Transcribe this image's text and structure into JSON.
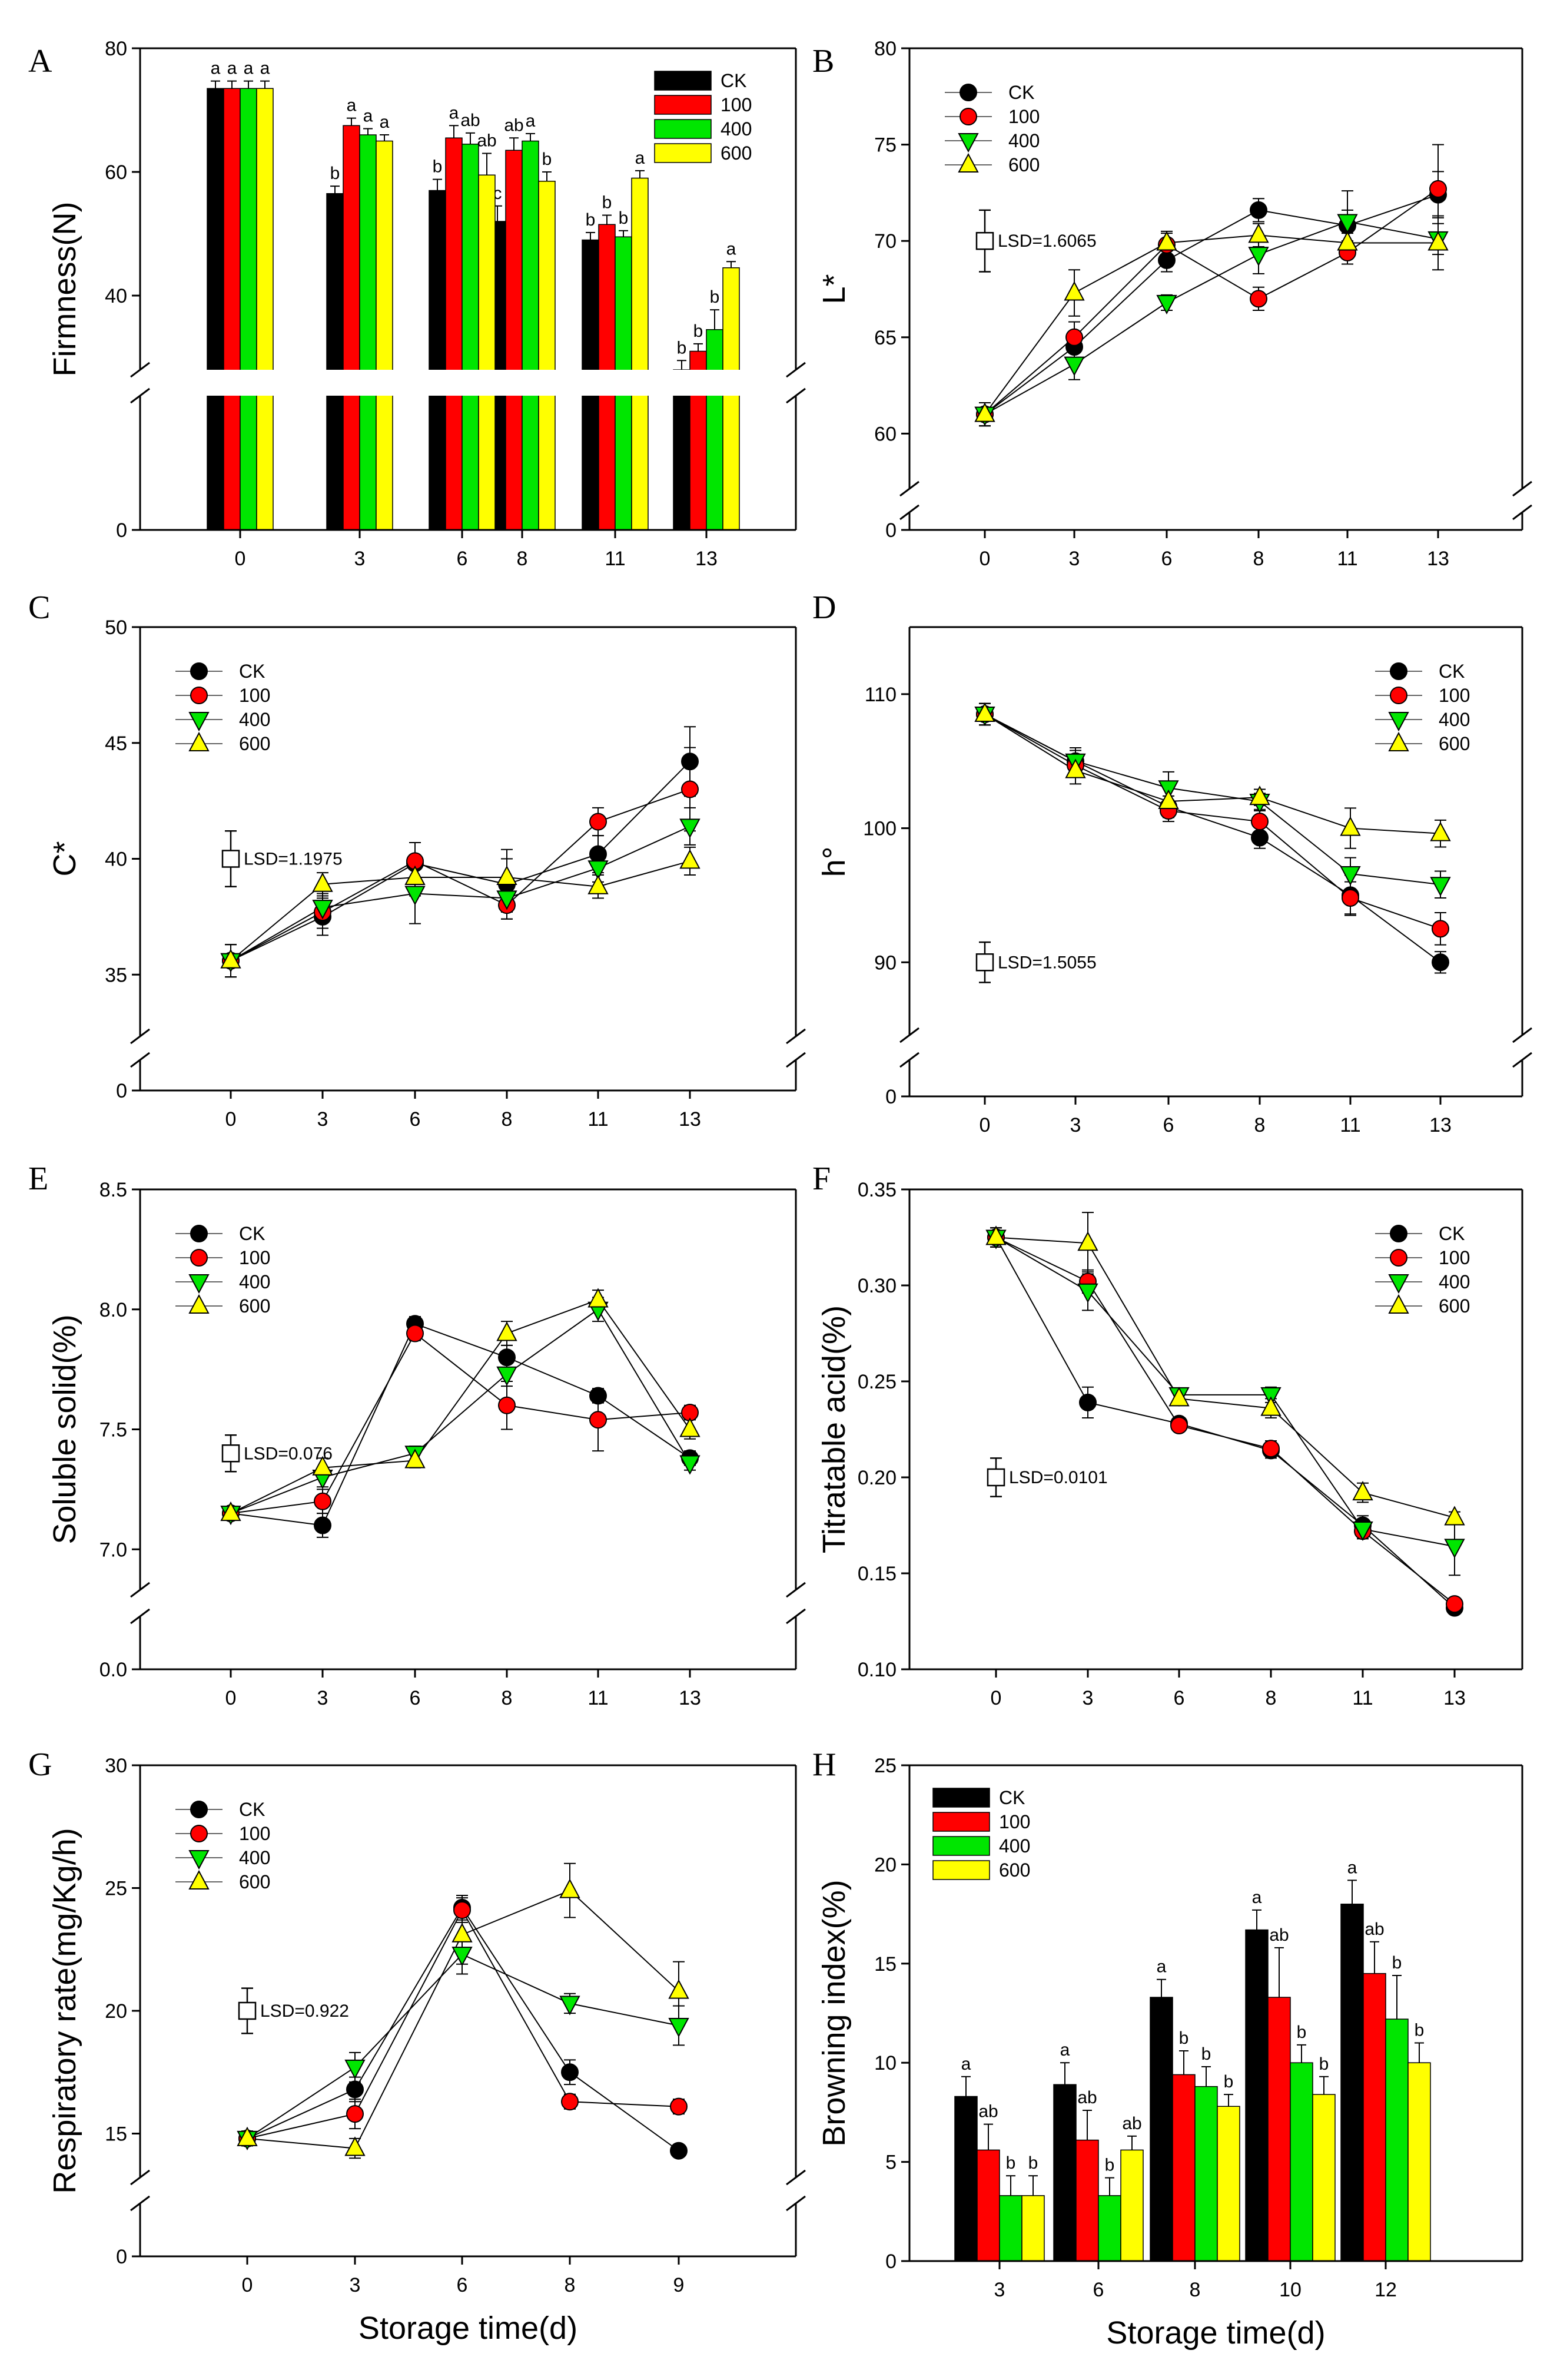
{
  "chart_data": [
    {
      "panel": "A",
      "type": "bar",
      "broken_axis": true,
      "ylabel": "Firmness(N)",
      "xlabel": "",
      "categories": [
        "0",
        "3",
        "6",
        "8",
        "11",
        "13"
      ],
      "ylim": [
        0,
        80
      ],
      "yticks": [
        0,
        40,
        60,
        80
      ],
      "legend": "top-right",
      "series": [
        {
          "name": "CK",
          "color": "#000000",
          "values": [
            73.5,
            56.5,
            57,
            52,
            49,
            28
          ],
          "err": [
            1.2,
            1.2,
            1.8,
            2.5,
            1.2,
            1.5
          ],
          "sig": [
            "a",
            "b",
            "b",
            "c",
            "b",
            "b"
          ]
        },
        {
          "name": "100",
          "color": "#ff0000",
          "values": [
            73.5,
            67.5,
            65.5,
            63.5,
            51.5,
            31
          ],
          "err": [
            1.2,
            1.2,
            2,
            2,
            1.5,
            1.2
          ],
          "sig": [
            "a",
            "a",
            "a",
            "ab",
            "b",
            "b"
          ]
        },
        {
          "name": "400",
          "color": "#00e600",
          "values": [
            73.5,
            66,
            64.5,
            65,
            49.5,
            34.5
          ],
          "err": [
            1.2,
            1,
            1.8,
            1.2,
            1,
            3.2
          ],
          "sig": [
            "a",
            "a",
            "ab",
            "a",
            "b",
            "b"
          ]
        },
        {
          "name": "600",
          "color": "#ffff00",
          "values": [
            73.5,
            65,
            59.5,
            58.5,
            59,
            44.5
          ],
          "err": [
            1.2,
            1,
            3.5,
            1.5,
            1.2,
            1
          ],
          "sig": [
            "a",
            "a",
            "ab",
            "b",
            "a",
            "a"
          ]
        }
      ]
    },
    {
      "panel": "B",
      "type": "line",
      "ylabel": "L*",
      "xlabel": "",
      "categories": [
        "0",
        "3",
        "6",
        "8",
        "11",
        "13"
      ],
      "ylim": [
        55,
        80
      ],
      "yticks": [
        55,
        60,
        65,
        70,
        75,
        80
      ],
      "tick_labels": [
        "0",
        "60",
        "65",
        "70",
        "75",
        "80"
      ],
      "lsd": {
        "label": "LSD=1.6065",
        "center": 70,
        "half": 1.6
      },
      "legend": "top-left",
      "series": [
        {
          "name": "CK",
          "marker": "circle",
          "color": "#000000",
          "values": [
            61,
            64.5,
            69,
            71.6,
            70.8,
            72.4
          ],
          "err": [
            0.6,
            0.8,
            0.6,
            0.6,
            0.8,
            1.2
          ]
        },
        {
          "name": "100",
          "marker": "circle",
          "color": "#ff0000",
          "values": [
            61,
            65,
            69.8,
            67,
            69.4,
            72.7
          ],
          "err": [
            0.6,
            0.8,
            0.6,
            0.6,
            0.6,
            2.3
          ]
        },
        {
          "name": "400",
          "marker": "triangle-down",
          "color": "#00e600",
          "values": [
            61,
            63.6,
            66.8,
            69.3,
            71,
            70.1
          ],
          "err": [
            0.6,
            0.8,
            0.4,
            1,
            1.6,
            0.8
          ]
        },
        {
          "name": "600",
          "marker": "triangle-up",
          "color": "#ffff00",
          "values": [
            61,
            67.3,
            69.9,
            70.3,
            69.9,
            69.9
          ],
          "err": [
            0.6,
            1.2,
            0.6,
            0.6,
            0.5,
            1.4
          ]
        }
      ]
    },
    {
      "panel": "C",
      "type": "line",
      "broken_axis": true,
      "ylabel": "C*",
      "xlabel": "",
      "categories": [
        "0",
        "3",
        "6",
        "8",
        "11",
        "13"
      ],
      "ylim": [
        30,
        50
      ],
      "yticks": [
        30,
        35,
        40,
        45,
        50
      ],
      "tick_labels": [
        "0",
        "35",
        "40",
        "45",
        "50"
      ],
      "lsd": {
        "label": "LSD=1.1975",
        "center": 40,
        "half": 1.2
      },
      "legend": "top-left",
      "series": [
        {
          "name": "CK",
          "marker": "circle",
          "color": "#000000",
          "values": [
            35.6,
            37.5,
            39.8,
            38.9,
            40.2,
            44.2
          ],
          "err": [
            0.7,
            0.8,
            0.9,
            1.5,
            0.8,
            1.5
          ]
        },
        {
          "name": "100",
          "marker": "circle",
          "color": "#ff0000",
          "values": [
            35.6,
            37.7,
            39.9,
            38,
            41.6,
            43
          ],
          "err": [
            0.7,
            0.7,
            0.8,
            0.6,
            0.6,
            1.8
          ]
        },
        {
          "name": "400",
          "marker": "triangle-down",
          "color": "#00e600",
          "values": [
            35.6,
            37.9,
            38.5,
            38.3,
            39.6,
            41.4
          ],
          "err": [
            0.7,
            0.6,
            1.3,
            0.6,
            0.6,
            0.8
          ]
        },
        {
          "name": "600",
          "marker": "triangle-up",
          "color": "#ffff00",
          "values": [
            35.6,
            38.9,
            39.2,
            39.2,
            38.8,
            39.9
          ],
          "err": [
            0.7,
            0.5,
            0.8,
            0.8,
            0.5,
            0.6
          ]
        }
      ]
    },
    {
      "panel": "D",
      "type": "line",
      "broken_axis": true,
      "ylabel": "h°",
      "xlabel": "",
      "categories": [
        "0",
        "3",
        "6",
        "8",
        "11",
        "13"
      ],
      "ylim": [
        80,
        115
      ],
      "yticks": [
        80,
        90,
        100,
        110
      ],
      "tick_labels": [
        "0",
        "90",
        "100",
        "110"
      ],
      "lsd": {
        "label": "LSD=1.5055",
        "center": 90,
        "half": 1.5
      },
      "legend": "top-right",
      "series": [
        {
          "name": "CK",
          "marker": "circle",
          "color": "#000000",
          "values": [
            108.5,
            105,
            101.6,
            99.3,
            95,
            90
          ],
          "err": [
            0.8,
            1,
            0.8,
            0.8,
            1.5,
            0.8
          ]
        },
        {
          "name": "100",
          "marker": "circle",
          "color": "#ff0000",
          "values": [
            108.5,
            104.7,
            101.3,
            100.5,
            94.8,
            92.5
          ],
          "err": [
            0.8,
            0.8,
            0.8,
            0.8,
            1.2,
            1.2
          ]
        },
        {
          "name": "400",
          "marker": "triangle-down",
          "color": "#00e600",
          "values": [
            108.5,
            105,
            103,
            102,
            96.6,
            95.8
          ],
          "err": [
            0.8,
            0.8,
            1.2,
            0.6,
            1.2,
            1
          ]
        },
        {
          "name": "600",
          "marker": "triangle-up",
          "color": "#ffff00",
          "values": [
            108.5,
            104.3,
            102,
            102.3,
            100,
            99.6
          ],
          "err": [
            0.8,
            1,
            1.2,
            0.6,
            1.5,
            1
          ]
        }
      ]
    },
    {
      "panel": "E",
      "type": "line",
      "broken_axis": true,
      "ylabel": "Soluble solid(%)",
      "xlabel": "",
      "categories": [
        "0",
        "3",
        "6",
        "8",
        "11",
        "13"
      ],
      "ylim": [
        6.5,
        8.5
      ],
      "yticks": [
        6.5,
        7.0,
        7.5,
        8.0,
        8.5
      ],
      "tick_labels": [
        "0.0",
        "7.0",
        "7.5",
        "8.0",
        "8.5"
      ],
      "lsd": {
        "label": "LSD=0.076",
        "center": 7.4,
        "half": 0.076
      },
      "legend": "top-left",
      "series": [
        {
          "name": "CK",
          "marker": "circle",
          "color": "#000000",
          "values": [
            7.15,
            7.1,
            7.94,
            7.8,
            7.64,
            7.38
          ],
          "err": [
            0.02,
            0.05,
            0.03,
            0.05,
            0.03,
            0.03
          ]
        },
        {
          "name": "100",
          "marker": "circle",
          "color": "#ff0000",
          "values": [
            7.15,
            7.2,
            7.9,
            7.6,
            7.54,
            7.57
          ],
          "err": [
            0.02,
            0.05,
            0.03,
            0.1,
            0.13,
            0.03
          ]
        },
        {
          "name": "400",
          "marker": "triangle-down",
          "color": "#00e600",
          "values": [
            7.15,
            7.3,
            7.4,
            7.73,
            8.0,
            7.36
          ],
          "err": [
            0.02,
            0.04,
            0.03,
            0.05,
            0.05,
            0.03
          ]
        },
        {
          "name": "600",
          "marker": "triangle-up",
          "color": "#ffff00",
          "values": [
            7.15,
            7.34,
            7.37,
            7.9,
            8.04,
            7.5
          ],
          "err": [
            0.02,
            0.04,
            0.03,
            0.05,
            0.04,
            0.04
          ]
        }
      ]
    },
    {
      "panel": "F",
      "type": "line",
      "ylabel": "Titratable acid(%)",
      "xlabel": "",
      "categories": [
        "0",
        "3",
        "6",
        "8",
        "11",
        "13"
      ],
      "ylim": [
        0.1,
        0.35
      ],
      "yticks": [
        0.1,
        0.15,
        0.2,
        0.25,
        0.3,
        0.35
      ],
      "tick_labels": [
        "0.10",
        "0.15",
        "0.20",
        "0.25",
        "0.30",
        "0.35"
      ],
      "lsd": {
        "label": "LSD=0.0101",
        "center": 0.2,
        "half": 0.01
      },
      "legend": "top-right",
      "series": [
        {
          "name": "CK",
          "marker": "circle",
          "color": "#000000",
          "values": [
            0.325,
            0.239,
            0.228,
            0.214,
            0.175,
            0.132
          ],
          "err": [
            0.005,
            0.008,
            0.003,
            0.004,
            0.005,
            0.003
          ]
        },
        {
          "name": "100",
          "marker": "circle",
          "color": "#ff0000",
          "values": [
            0.325,
            0.302,
            0.227,
            0.215,
            0.172,
            0.134
          ],
          "err": [
            0.005,
            0.006,
            0.003,
            0.004,
            0.004,
            0.003
          ]
        },
        {
          "name": "400",
          "marker": "triangle-down",
          "color": "#00e600",
          "values": [
            0.325,
            0.297,
            0.243,
            0.243,
            0.173,
            0.164
          ],
          "err": [
            0.005,
            0.01,
            0.003,
            0.004,
            0.004,
            0.015
          ]
        },
        {
          "name": "600",
          "marker": "triangle-up",
          "color": "#ffff00",
          "values": [
            0.325,
            0.322,
            0.241,
            0.236,
            0.192,
            0.179
          ],
          "err": [
            0.005,
            0.016,
            0.003,
            0.005,
            0.005,
            0.003
          ]
        }
      ]
    },
    {
      "panel": "G",
      "type": "line",
      "broken_axis": true,
      "ylabel": "Respiratory rate(mg/Kg/h)",
      "xlabel": "Storage time(d)",
      "categories": [
        "0",
        "3",
        "6",
        "8",
        "9"
      ],
      "ylim": [
        10,
        30
      ],
      "yticks": [
        10,
        15,
        20,
        25,
        30
      ],
      "tick_labels": [
        "0",
        "15",
        "20",
        "25",
        "30"
      ],
      "lsd": {
        "label": "LSD=0.922",
        "center": 20,
        "half": 0.92
      },
      "legend": "top-left",
      "series": [
        {
          "name": "CK",
          "marker": "circle",
          "color": "#000000",
          "values": [
            14.8,
            16.8,
            24.2,
            17.5,
            14.3
          ],
          "err": [
            0.3,
            0.5,
            0.5,
            0.5,
            0.2
          ]
        },
        {
          "name": "100",
          "marker": "circle",
          "color": "#ff0000",
          "values": [
            14.8,
            15.8,
            24.1,
            16.3,
            16.1
          ],
          "err": [
            0.3,
            0.6,
            0.5,
            0.3,
            0.3
          ]
        },
        {
          "name": "400",
          "marker": "triangle-down",
          "color": "#00e600",
          "values": [
            14.8,
            17.7,
            22.3,
            20.3,
            19.4
          ],
          "err": [
            0.3,
            0.6,
            0.8,
            0.4,
            0.8
          ]
        },
        {
          "name": "600",
          "marker": "triangle-up",
          "color": "#ffff00",
          "values": [
            14.8,
            14.4,
            23.1,
            24.9,
            20.8
          ],
          "err": [
            0.3,
            0.4,
            1.2,
            1.1,
            1.2
          ]
        }
      ]
    },
    {
      "panel": "H",
      "type": "bar",
      "ylabel": "Browning index(%)",
      "xlabel": "Storage time(d)",
      "categories": [
        "3",
        "6",
        "8",
        "10",
        "12"
      ],
      "ylim": [
        0,
        25
      ],
      "yticks": [
        0,
        5,
        10,
        15,
        20,
        25
      ],
      "legend": "top-left",
      "series": [
        {
          "name": "CK",
          "color": "#000000",
          "values": [
            8.3,
            8.9,
            13.3,
            16.7,
            18
          ],
          "err": [
            1,
            1.1,
            0.9,
            1,
            1.2
          ],
          "sig": [
            "a",
            "a",
            "a",
            "a",
            "a"
          ]
        },
        {
          "name": "100",
          "color": "#ff0000",
          "values": [
            5.6,
            6.1,
            9.4,
            13.3,
            14.5
          ],
          "err": [
            1.3,
            1.5,
            1.2,
            2.5,
            1.6
          ],
          "sig": [
            "ab",
            "ab",
            "b",
            "ab",
            "ab"
          ]
        },
        {
          "name": "400",
          "color": "#00e600",
          "values": [
            3.3,
            3.3,
            8.8,
            10,
            12.2
          ],
          "err": [
            1,
            0.9,
            1,
            0.9,
            2.2
          ],
          "sig": [
            "b",
            "b",
            "b",
            "b",
            "b"
          ]
        },
        {
          "name": "600",
          "color": "#ffff00",
          "values": [
            3.3,
            5.6,
            7.8,
            8.4,
            10
          ],
          "err": [
            1,
            0.7,
            0.6,
            0.9,
            1
          ],
          "sig": [
            "b",
            "ab",
            "b",
            "b",
            "b"
          ]
        }
      ]
    }
  ]
}
